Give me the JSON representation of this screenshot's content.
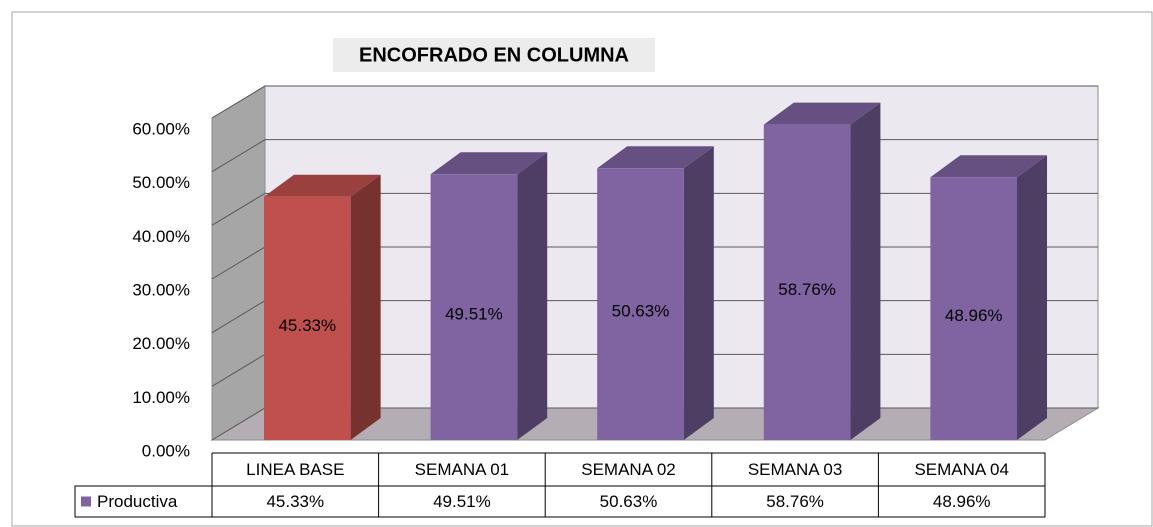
{
  "chart_data": {
    "type": "bar3d",
    "title": "ENCOFRADO EN COLUMNA",
    "categories": [
      "LINEA BASE",
      "SEMANA 01",
      "SEMANA 02",
      "SEMANA 03",
      "SEMANA 04"
    ],
    "series": [
      {
        "name": "Productiva",
        "color": "#8064a2",
        "colors": [
          "#c0504d",
          "#8064a2",
          "#8064a2",
          "#8064a2",
          "#8064a2"
        ],
        "values": [
          45.33,
          49.51,
          50.63,
          58.76,
          48.96
        ],
        "value_labels": [
          "45.33%",
          "49.51%",
          "50.63%",
          "58.76%",
          "48.96%"
        ]
      }
    ],
    "ylim": [
      0,
      60
    ],
    "yticks": [
      {
        "value": 0,
        "label": "0.00%"
      },
      {
        "value": 10,
        "label": "10.00%"
      },
      {
        "value": 20,
        "label": "20.00%"
      },
      {
        "value": 30,
        "label": "30.00%"
      },
      {
        "value": 40,
        "label": "40.00%"
      },
      {
        "value": 50,
        "label": "50.00%"
      },
      {
        "value": 60,
        "label": "60.00%"
      }
    ],
    "grid": true,
    "data_table": true
  }
}
